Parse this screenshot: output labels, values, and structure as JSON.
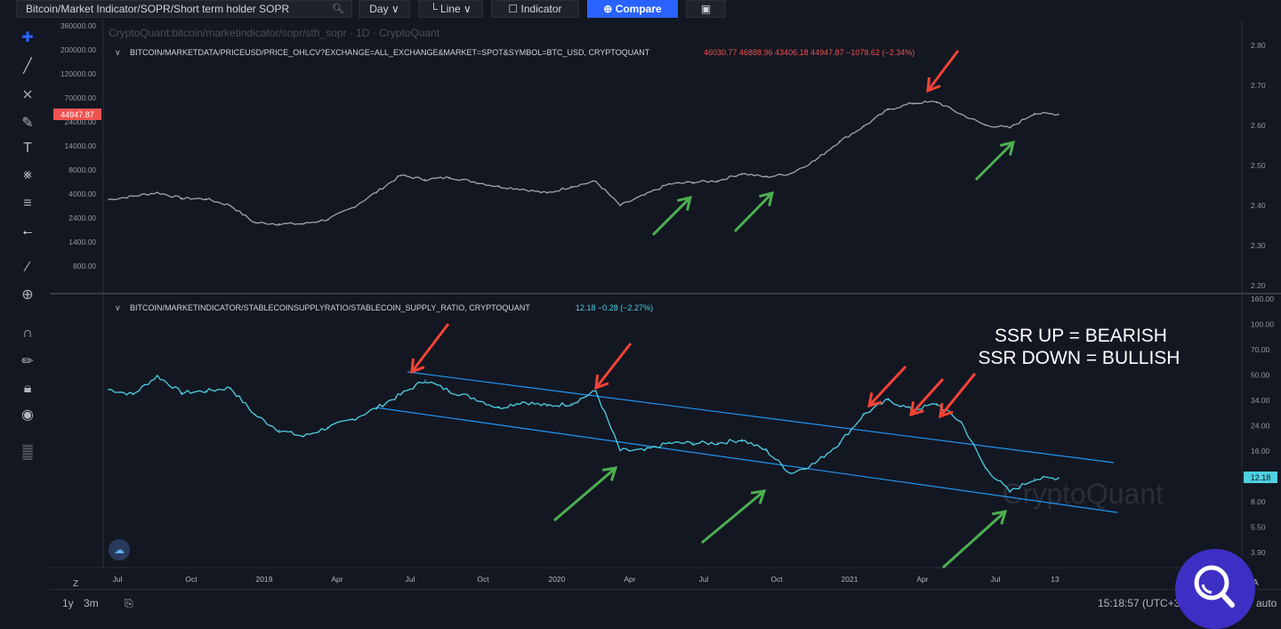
{
  "toolbar": {
    "symbol": "Bitcoin/Market Indicator/SOPR/Short term holder SOPR",
    "interval": "Day",
    "chart_style": "Line",
    "indicator_label": "Indicator",
    "compare_label": "Compare",
    "icons": [
      "search-icon",
      "chevron-down-icon",
      "line-chart-icon",
      "indicator-icon",
      "compare-plus-icon",
      "camera-icon"
    ]
  },
  "sidebar_icons": [
    "crosshair-icon",
    "trend-line-icon",
    "fib-icon",
    "brush-icon",
    "text-icon",
    "pattern-icon",
    "measure-icon",
    "back-arrow-icon",
    "ruler-icon",
    "zoom-in-icon",
    "magnet-icon",
    "lock-draw-icon",
    "lock-icon",
    "eye-icon",
    "trash-icon"
  ],
  "top_panel": {
    "watermark": "CryptoQuant:bitcoin/marketindicator/sopr/sth_sopr · 1D · CryptoQuant",
    "series_label": "BITCOIN/MARKETDATA/PRICEUSD/PRICE_OHLCV?EXCHANGE=ALL_EXCHANGE&MARKET=SPOT&SYMBOL=BTC_USD, CRYPTOQUANT",
    "ohlc": "46030.77  46888.96  43406.18  44947.87  −1078.62 (−2.34%)",
    "last_price": "44947.87",
    "left_ticks": [
      "360000.00",
      "200000.00",
      "120000.00",
      "70000.00",
      "24000.00",
      "14000.00",
      "8000.00",
      "4000.00",
      "2400.00",
      "1400.00",
      "800.00"
    ],
    "right_ticks": [
      "2.80",
      "2.70",
      "2.60",
      "2.50",
      "2.40",
      "2.30",
      "2.20"
    ],
    "price_color": "#ef5350"
  },
  "bottom_panel": {
    "series_label": "BITCOIN/MARKETINDICATOR/STABLECOINSUPPLYRATIO/STABLECOIN_SUPPLY_RATIO, CRYPTOQUANT",
    "value": "12.18  −0.28 (−2.27%)",
    "last_value": "12.18",
    "watermark": "CryptoQuant",
    "annotation_line1": "SSR UP = BEARISH",
    "annotation_line2": "SSR DOWN = BULLISH",
    "right_ticks": [
      "160.00",
      "100.00",
      "70.00",
      "50.00",
      "34.00",
      "24.00",
      "16.00",
      "11.00",
      "8.00",
      "5.50",
      "3.90"
    ],
    "line_color": "#4dd0e1",
    "channel_color": "#2196f3"
  },
  "x_axis": {
    "ticks": [
      "Jul",
      "Oct",
      "2019",
      "Apr",
      "Jul",
      "Oct",
      "2020",
      "Apr",
      "Jul",
      "Oct",
      "2021",
      "Apr",
      "Jul",
      "13"
    ]
  },
  "bottom_bar": {
    "range_1y": "1y",
    "range_3m": "3m",
    "clock": "15:18:57 (UTC+3",
    "auto": "auto",
    "z_label": "Z",
    "a_label": "A"
  },
  "arrow_colors": {
    "bearish": "#f44336",
    "bullish": "#4caf50"
  },
  "chart_data": [
    {
      "type": "line",
      "name": "BTC price",
      "y_scale": "log",
      "ylim": [
        800,
        360000
      ],
      "x": [
        "2018-06",
        "2018-07",
        "2018-08",
        "2018-09",
        "2018-10",
        "2018-11",
        "2018-12",
        "2019-01",
        "2019-02",
        "2019-03",
        "2019-04",
        "2019-05",
        "2019-06",
        "2019-07",
        "2019-08",
        "2019-09",
        "2019-10",
        "2019-11",
        "2019-12",
        "2020-01",
        "2020-02",
        "2020-03",
        "2020-04",
        "2020-05",
        "2020-06",
        "2020-07",
        "2020-08",
        "2020-09",
        "2020-10",
        "2020-11",
        "2020-12",
        "2021-01",
        "2021-02",
        "2021-03",
        "2021-04",
        "2021-05",
        "2021-06",
        "2021-07",
        "2021-08",
        "2021-09"
      ],
      "values": [
        6300,
        6800,
        7400,
        6500,
        6400,
        5500,
        3700,
        3600,
        3600,
        4000,
        5200,
        7500,
        11000,
        10000,
        10500,
        9500,
        8500,
        8000,
        7300,
        8500,
        9600,
        5500,
        7000,
        9000,
        9400,
        9700,
        11500,
        10600,
        11500,
        15500,
        24000,
        34000,
        50000,
        58000,
        60000,
        45000,
        35000,
        33000,
        46000,
        45000
      ]
    },
    {
      "type": "line",
      "name": "Stablecoin Supply Ratio",
      "y_scale": "log",
      "ylim": [
        3.9,
        160
      ],
      "x": [
        "2018-06",
        "2018-07",
        "2018-08",
        "2018-09",
        "2018-10",
        "2018-11",
        "2018-12",
        "2019-01",
        "2019-02",
        "2019-03",
        "2019-04",
        "2019-05",
        "2019-06",
        "2019-07",
        "2019-08",
        "2019-09",
        "2019-10",
        "2019-11",
        "2019-12",
        "2020-01",
        "2020-02",
        "2020-03",
        "2020-04",
        "2020-05",
        "2020-06",
        "2020-07",
        "2020-08",
        "2020-09",
        "2020-10",
        "2020-11",
        "2020-12",
        "2021-01",
        "2021-02",
        "2021-03",
        "2021-04",
        "2021-05",
        "2021-06",
        "2021-07",
        "2021-08",
        "2021-09"
      ],
      "values": [
        43,
        40,
        52,
        41,
        42,
        44,
        30,
        24,
        22,
        25,
        28,
        33,
        40,
        49,
        42,
        38,
        33,
        36,
        34,
        35,
        42,
        18,
        18,
        20,
        20,
        20,
        21,
        18,
        13,
        15,
        20,
        30,
        37,
        32,
        35,
        27,
        14,
        10,
        12,
        12.18
      ]
    }
  ]
}
